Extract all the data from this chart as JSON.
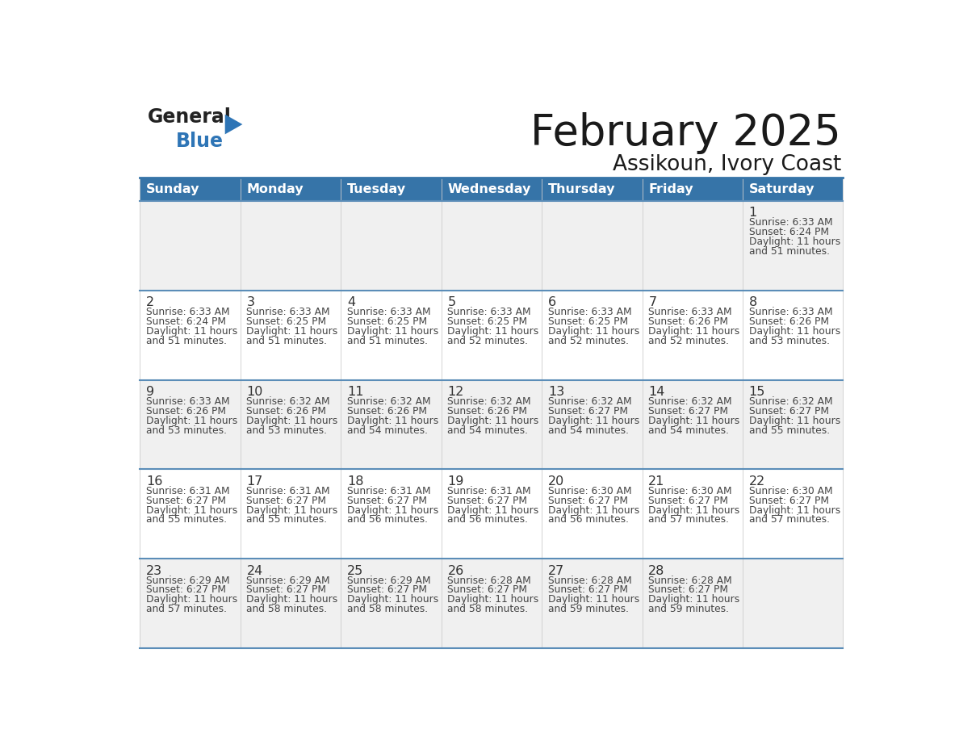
{
  "title": "February 2025",
  "subtitle": "Assikoun, Ivory Coast",
  "header_bg": "#3674a8",
  "header_text_color": "#FFFFFF",
  "cell_bg_even": "#FFFFFF",
  "cell_bg_odd": "#F0F0F0",
  "border_color": "#3674a8",
  "row_border_color": "#5b8db8",
  "text_color": "#444444",
  "day_number_color": "#333333",
  "days_of_week": [
    "Sunday",
    "Monday",
    "Tuesday",
    "Wednesday",
    "Thursday",
    "Friday",
    "Saturday"
  ],
  "logo_general_color": "#222222",
  "logo_blue_color": "#2E75B6",
  "calendar_data": [
    [
      null,
      null,
      null,
      null,
      null,
      null,
      {
        "day": "1",
        "sunrise": "6:33 AM",
        "sunset": "6:24 PM",
        "daylight_line1": "Daylight: 11 hours",
        "daylight_line2": "and 51 minutes."
      }
    ],
    [
      {
        "day": "2",
        "sunrise": "6:33 AM",
        "sunset": "6:24 PM",
        "daylight_line1": "Daylight: 11 hours",
        "daylight_line2": "and 51 minutes."
      },
      {
        "day": "3",
        "sunrise": "6:33 AM",
        "sunset": "6:25 PM",
        "daylight_line1": "Daylight: 11 hours",
        "daylight_line2": "and 51 minutes."
      },
      {
        "day": "4",
        "sunrise": "6:33 AM",
        "sunset": "6:25 PM",
        "daylight_line1": "Daylight: 11 hours",
        "daylight_line2": "and 51 minutes."
      },
      {
        "day": "5",
        "sunrise": "6:33 AM",
        "sunset": "6:25 PM",
        "daylight_line1": "Daylight: 11 hours",
        "daylight_line2": "and 52 minutes."
      },
      {
        "day": "6",
        "sunrise": "6:33 AM",
        "sunset": "6:25 PM",
        "daylight_line1": "Daylight: 11 hours",
        "daylight_line2": "and 52 minutes."
      },
      {
        "day": "7",
        "sunrise": "6:33 AM",
        "sunset": "6:26 PM",
        "daylight_line1": "Daylight: 11 hours",
        "daylight_line2": "and 52 minutes."
      },
      {
        "day": "8",
        "sunrise": "6:33 AM",
        "sunset": "6:26 PM",
        "daylight_line1": "Daylight: 11 hours",
        "daylight_line2": "and 53 minutes."
      }
    ],
    [
      {
        "day": "9",
        "sunrise": "6:33 AM",
        "sunset": "6:26 PM",
        "daylight_line1": "Daylight: 11 hours",
        "daylight_line2": "and 53 minutes."
      },
      {
        "day": "10",
        "sunrise": "6:32 AM",
        "sunset": "6:26 PM",
        "daylight_line1": "Daylight: 11 hours",
        "daylight_line2": "and 53 minutes."
      },
      {
        "day": "11",
        "sunrise": "6:32 AM",
        "sunset": "6:26 PM",
        "daylight_line1": "Daylight: 11 hours",
        "daylight_line2": "and 54 minutes."
      },
      {
        "day": "12",
        "sunrise": "6:32 AM",
        "sunset": "6:26 PM",
        "daylight_line1": "Daylight: 11 hours",
        "daylight_line2": "and 54 minutes."
      },
      {
        "day": "13",
        "sunrise": "6:32 AM",
        "sunset": "6:27 PM",
        "daylight_line1": "Daylight: 11 hours",
        "daylight_line2": "and 54 minutes."
      },
      {
        "day": "14",
        "sunrise": "6:32 AM",
        "sunset": "6:27 PM",
        "daylight_line1": "Daylight: 11 hours",
        "daylight_line2": "and 54 minutes."
      },
      {
        "day": "15",
        "sunrise": "6:32 AM",
        "sunset": "6:27 PM",
        "daylight_line1": "Daylight: 11 hours",
        "daylight_line2": "and 55 minutes."
      }
    ],
    [
      {
        "day": "16",
        "sunrise": "6:31 AM",
        "sunset": "6:27 PM",
        "daylight_line1": "Daylight: 11 hours",
        "daylight_line2": "and 55 minutes."
      },
      {
        "day": "17",
        "sunrise": "6:31 AM",
        "sunset": "6:27 PM",
        "daylight_line1": "Daylight: 11 hours",
        "daylight_line2": "and 55 minutes."
      },
      {
        "day": "18",
        "sunrise": "6:31 AM",
        "sunset": "6:27 PM",
        "daylight_line1": "Daylight: 11 hours",
        "daylight_line2": "and 56 minutes."
      },
      {
        "day": "19",
        "sunrise": "6:31 AM",
        "sunset": "6:27 PM",
        "daylight_line1": "Daylight: 11 hours",
        "daylight_line2": "and 56 minutes."
      },
      {
        "day": "20",
        "sunrise": "6:30 AM",
        "sunset": "6:27 PM",
        "daylight_line1": "Daylight: 11 hours",
        "daylight_line2": "and 56 minutes."
      },
      {
        "day": "21",
        "sunrise": "6:30 AM",
        "sunset": "6:27 PM",
        "daylight_line1": "Daylight: 11 hours",
        "daylight_line2": "and 57 minutes."
      },
      {
        "day": "22",
        "sunrise": "6:30 AM",
        "sunset": "6:27 PM",
        "daylight_line1": "Daylight: 11 hours",
        "daylight_line2": "and 57 minutes."
      }
    ],
    [
      {
        "day": "23",
        "sunrise": "6:29 AM",
        "sunset": "6:27 PM",
        "daylight_line1": "Daylight: 11 hours",
        "daylight_line2": "and 57 minutes."
      },
      {
        "day": "24",
        "sunrise": "6:29 AM",
        "sunset": "6:27 PM",
        "daylight_line1": "Daylight: 11 hours",
        "daylight_line2": "and 58 minutes."
      },
      {
        "day": "25",
        "sunrise": "6:29 AM",
        "sunset": "6:27 PM",
        "daylight_line1": "Daylight: 11 hours",
        "daylight_line2": "and 58 minutes."
      },
      {
        "day": "26",
        "sunrise": "6:28 AM",
        "sunset": "6:27 PM",
        "daylight_line1": "Daylight: 11 hours",
        "daylight_line2": "and 58 minutes."
      },
      {
        "day": "27",
        "sunrise": "6:28 AM",
        "sunset": "6:27 PM",
        "daylight_line1": "Daylight: 11 hours",
        "daylight_line2": "and 59 minutes."
      },
      {
        "day": "28",
        "sunrise": "6:28 AM",
        "sunset": "6:27 PM",
        "daylight_line1": "Daylight: 11 hours",
        "daylight_line2": "and 59 minutes."
      },
      null
    ]
  ]
}
